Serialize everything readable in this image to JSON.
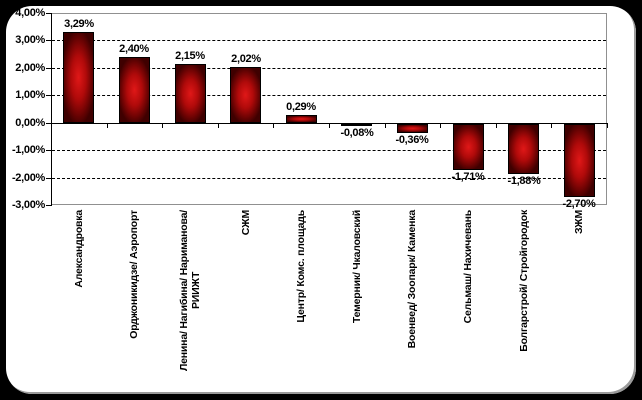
{
  "chart_data": {
    "type": "bar",
    "title": "",
    "legend": "none",
    "grid": "horizontal-dashed",
    "ylim": [
      -3,
      4
    ],
    "categories": [
      "Александровка",
      "Орджоникидзе/ Аэропорт",
      "Ленина/ Нагибина/ Нариманова/\nРИИЖТ",
      "СЖМ",
      "Центр/ Комс. площадь",
      "Темерник/ Чкаловский",
      "Военвед/ Зоопарк/ Каменка",
      "Сельмаш/ Нахичевань",
      "Болгарстрой/ Стройгородок",
      "ЗЖМ"
    ],
    "values": [
      3.29,
      2.4,
      2.15,
      2.02,
      0.29,
      -0.08,
      -0.36,
      -1.71,
      -1.88,
      -2.7
    ],
    "value_labels": [
      "3,29%",
      "2,40%",
      "2,15%",
      "2,02%",
      "0,29%",
      "-0,08%",
      "-0,36%",
      "-1,71%",
      "-1,88%",
      "-2,70%"
    ],
    "y_ticks": [
      {
        "v": 4,
        "label": "4,00%"
      },
      {
        "v": 3,
        "label": "3,00%"
      },
      {
        "v": 2,
        "label": "2,00%"
      },
      {
        "v": 1,
        "label": "1,00%"
      },
      {
        "v": 0,
        "label": "0,00%"
      },
      {
        "v": -1,
        "label": "-1,00%"
      },
      {
        "v": -2,
        "label": "-2,00%"
      },
      {
        "v": -3,
        "label": "-3,00%"
      }
    ],
    "colors": {
      "bar_center": "#e01818",
      "bar_mid": "#b00a0a",
      "bar_edge": "#3f0000",
      "bar_border": "#000000",
      "gridline": "#000000",
      "plot_border": "#909090",
      "axis": "#000000",
      "text": "#000000",
      "frame": "#000000",
      "panel": "#ffffff"
    }
  }
}
